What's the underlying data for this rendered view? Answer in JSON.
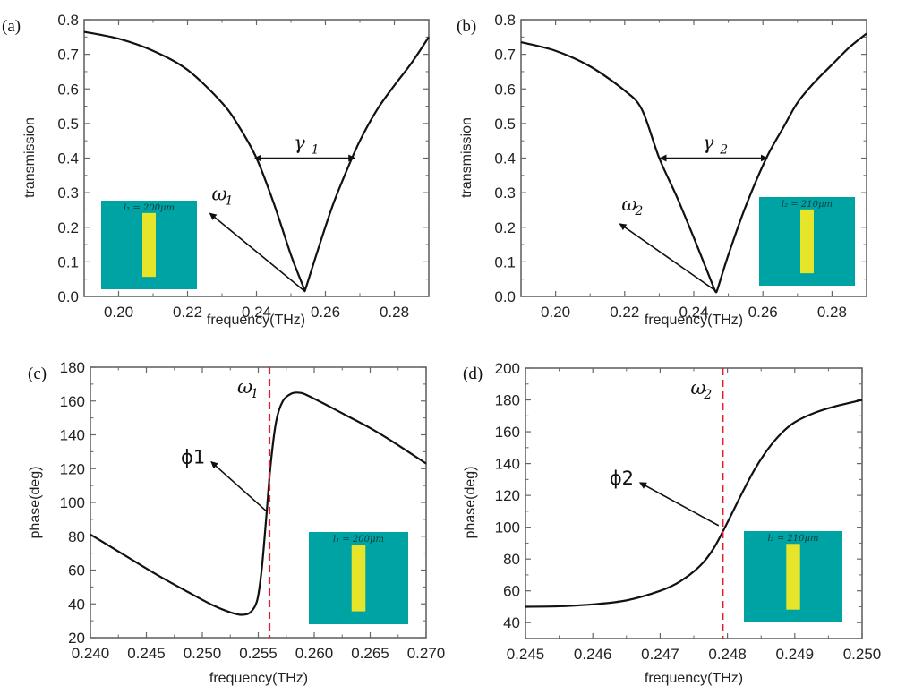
{
  "colors": {
    "curve": "#111111",
    "frame": "#666666",
    "marker_line": "#e0202a",
    "inset_bg": "#00a3a3",
    "inset_bar": "#e6e52a"
  },
  "chart_data": [
    {
      "id": "a",
      "panel_label": "(a)",
      "type": "line",
      "xlabel": "frequency(THz)",
      "ylabel": "transmission",
      "xlim": [
        0.19,
        0.29
      ],
      "ylim": [
        0.0,
        0.8
      ],
      "xticks": [
        0.2,
        0.22,
        0.24,
        0.26,
        0.28
      ],
      "xtick_labels": [
        "0.20",
        "0.22",
        "0.24",
        "0.26",
        "0.28"
      ],
      "yticks": [
        0.0,
        0.1,
        0.2,
        0.3,
        0.4,
        0.5,
        0.6,
        0.7,
        0.8
      ],
      "ytick_labels": [
        "0.0",
        "0.1",
        "0.2",
        "0.3",
        "0.4",
        "0.5",
        "0.6",
        "0.7",
        "0.8"
      ],
      "series": [
        {
          "name": "transmission",
          "x": [
            0.19,
            0.2,
            0.21,
            0.22,
            0.23,
            0.235,
            0.24,
            0.245,
            0.25,
            0.2535,
            0.254,
            0.2545,
            0.258,
            0.262,
            0.266,
            0.27,
            0.275,
            0.28,
            0.285,
            0.29
          ],
          "y": [
            0.765,
            0.745,
            0.71,
            0.655,
            0.56,
            0.49,
            0.4,
            0.27,
            0.12,
            0.03,
            0.015,
            0.03,
            0.14,
            0.26,
            0.36,
            0.45,
            0.54,
            0.61,
            0.675,
            0.75
          ]
        }
      ],
      "annotations": {
        "resonance_label": "ω",
        "resonance_sub": "1",
        "resonance_point": [
          0.254,
          0.015
        ],
        "resonance_arrow_tip": [
          0.2265,
          0.24
        ],
        "linewidth_label": "γ",
        "linewidth_sub": "1",
        "linewidth_span": [
          0.2396,
          0.2685
        ],
        "linewidth_level": 0.4
      },
      "inset": {
        "label": "l₁ = 200μm",
        "position": "bottom-left"
      }
    },
    {
      "id": "b",
      "panel_label": "(b)",
      "type": "line",
      "xlabel": "frequency(THz)",
      "ylabel": "transmission",
      "xlim": [
        0.19,
        0.29
      ],
      "ylim": [
        0.0,
        0.8
      ],
      "xticks": [
        0.2,
        0.22,
        0.24,
        0.26,
        0.28
      ],
      "xtick_labels": [
        "0.20",
        "0.22",
        "0.24",
        "0.26",
        "0.28"
      ],
      "yticks": [
        0.0,
        0.1,
        0.2,
        0.3,
        0.4,
        0.5,
        0.6,
        0.7,
        0.8
      ],
      "ytick_labels": [
        "0.0",
        "0.1",
        "0.2",
        "0.3",
        "0.4",
        "0.5",
        "0.6",
        "0.7",
        "0.8"
      ],
      "series": [
        {
          "name": "transmission",
          "x": [
            0.19,
            0.2,
            0.21,
            0.22,
            0.225,
            0.23,
            0.235,
            0.24,
            0.244,
            0.246,
            0.2465,
            0.247,
            0.25,
            0.255,
            0.261,
            0.266,
            0.27,
            0.275,
            0.28,
            0.285,
            0.29
          ],
          "y": [
            0.735,
            0.71,
            0.665,
            0.595,
            0.54,
            0.4,
            0.29,
            0.17,
            0.07,
            0.02,
            0.012,
            0.025,
            0.12,
            0.26,
            0.4,
            0.49,
            0.56,
            0.62,
            0.67,
            0.72,
            0.76
          ]
        }
      ],
      "annotations": {
        "resonance_label": "ω",
        "resonance_sub": "2",
        "resonance_point": [
          0.2465,
          0.015
        ],
        "resonance_arrow_tip": [
          0.2186,
          0.21
        ],
        "linewidth_label": "γ",
        "linewidth_sub": "2",
        "linewidth_span": [
          0.2303,
          0.2612
        ],
        "linewidth_level": 0.4
      },
      "inset": {
        "label": "l₂ = 210μm",
        "position": "bottom-right"
      }
    },
    {
      "id": "c",
      "panel_label": "(c)",
      "type": "line",
      "xlabel": "frequency(THz)",
      "ylabel": "phase(deg)",
      "xlim": [
        0.24,
        0.27
      ],
      "ylim": [
        20,
        180
      ],
      "xticks": [
        0.24,
        0.245,
        0.25,
        0.255,
        0.26,
        0.265,
        0.27
      ],
      "xtick_labels": [
        "0.240",
        "0.245",
        "0.250",
        "0.255",
        "0.260",
        "0.265",
        "0.270"
      ],
      "yticks": [
        20,
        40,
        60,
        80,
        100,
        120,
        140,
        160,
        180
      ],
      "ytick_labels": [
        "20",
        "40",
        "60",
        "80",
        "100",
        "120",
        "140",
        "160",
        "180"
      ],
      "series": [
        {
          "name": "phase",
          "x": [
            0.24,
            0.243,
            0.246,
            0.249,
            0.251,
            0.2525,
            0.2535,
            0.2543,
            0.2549,
            0.2553,
            0.2557,
            0.2561,
            0.2566,
            0.2572,
            0.258,
            0.2588,
            0.2595,
            0.261,
            0.263,
            0.265,
            0.267,
            0.27
          ],
          "y": [
            81,
            69,
            57,
            46,
            39,
            35,
            33.5,
            35,
            42,
            60,
            90,
            122,
            148,
            160,
            164.5,
            164.8,
            163,
            158,
            151,
            144,
            136,
            123
          ]
        }
      ],
      "annotations": {
        "marker_x": 0.256,
        "marker_label": "ω",
        "marker_sub": "1",
        "phase_label": "ϕ1",
        "phase_arrow_from": [
          0.2557,
          95
        ],
        "phase_arrow_to": [
          0.2508,
          124
        ]
      },
      "inset": {
        "label": "l₁ = 200μm",
        "position": "bottom-right"
      }
    },
    {
      "id": "d",
      "panel_label": "(d)",
      "type": "line",
      "xlabel": "frequency(THz)",
      "ylabel": "phase(deg)",
      "xlim": [
        0.245,
        0.25
      ],
      "ylim": [
        30,
        200
      ],
      "xticks": [
        0.245,
        0.246,
        0.247,
        0.248,
        0.249,
        0.25
      ],
      "xtick_labels": [
        "0.245",
        "0.246",
        "0.247",
        "0.248",
        "0.249",
        "0.250"
      ],
      "yticks": [
        40,
        60,
        80,
        100,
        120,
        140,
        160,
        180,
        200
      ],
      "ytick_labels": [
        "40",
        "60",
        "80",
        "100",
        "120",
        "140",
        "160",
        "180",
        "200"
      ],
      "series": [
        {
          "name": "phase",
          "x": [
            0.245,
            0.2455,
            0.246,
            0.2465,
            0.247,
            0.2473,
            0.2476,
            0.2478,
            0.248,
            0.2482,
            0.2484,
            0.2486,
            0.2488,
            0.249,
            0.2493,
            0.2496,
            0.25
          ],
          "y": [
            50,
            50.3,
            51.5,
            54,
            60,
            66,
            76,
            87,
            103,
            120,
            136,
            149,
            159,
            166,
            172,
            176,
            180
          ]
        }
      ],
      "annotations": {
        "marker_x": 0.24793,
        "marker_label": "ω",
        "marker_sub": "2",
        "phase_label": "ϕ2",
        "phase_arrow_from": [
          0.24787,
          101
        ],
        "phase_arrow_to": [
          0.2467,
          128
        ]
      },
      "inset": {
        "label": "l₂ = 210μm",
        "position": "bottom-right"
      }
    }
  ]
}
